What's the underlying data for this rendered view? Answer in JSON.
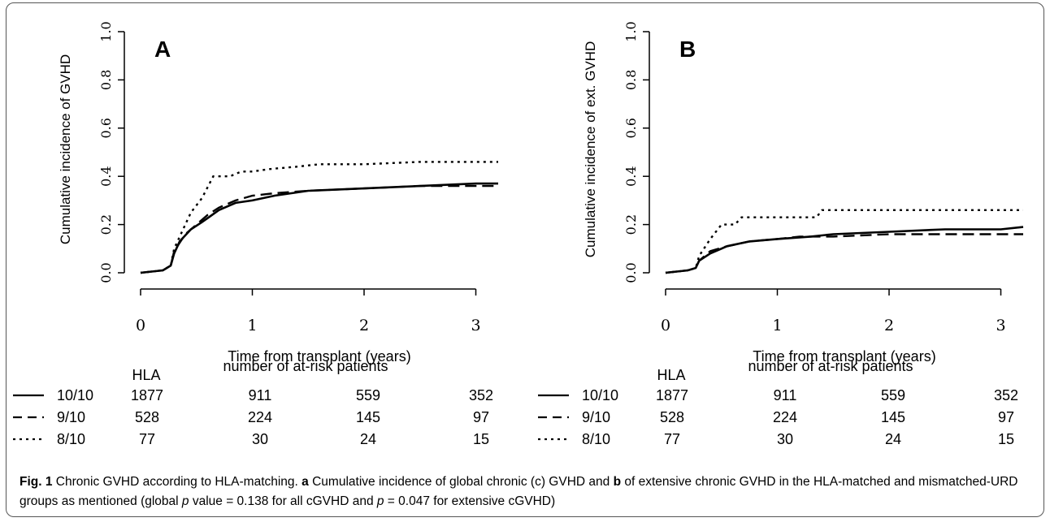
{
  "chart_data": [
    {
      "type": "line",
      "panel_label": "A",
      "ylabel": "Cumulative incidence of  GVHD",
      "xlabel": "Time from transplant (years)",
      "xlim": [
        0,
        3.2
      ],
      "ylim": [
        0,
        1.0
      ],
      "x_ticks": [
        "0",
        "1",
        "2",
        "3"
      ],
      "y_ticks": [
        "0.0",
        "0.2",
        "0.4",
        "0.6",
        "0.8",
        "1.0"
      ],
      "series": [
        {
          "name": "10/10",
          "style": "solid",
          "points": [
            [
              0,
              0
            ],
            [
              0.2,
              0.01
            ],
            [
              0.27,
              0.03
            ],
            [
              0.3,
              0.08
            ],
            [
              0.35,
              0.13
            ],
            [
              0.45,
              0.18
            ],
            [
              0.55,
              0.21
            ],
            [
              0.7,
              0.26
            ],
            [
              0.85,
              0.29
            ],
            [
              1.0,
              0.3
            ],
            [
              1.2,
              0.32
            ],
            [
              1.5,
              0.34
            ],
            [
              2.0,
              0.35
            ],
            [
              2.5,
              0.36
            ],
            [
              3.0,
              0.37
            ],
            [
              3.2,
              0.37
            ]
          ]
        },
        {
          "name": "9/10",
          "style": "dashed",
          "points": [
            [
              0,
              0
            ],
            [
              0.2,
              0.01
            ],
            [
              0.27,
              0.03
            ],
            [
              0.3,
              0.09
            ],
            [
              0.4,
              0.16
            ],
            [
              0.5,
              0.2
            ],
            [
              0.6,
              0.24
            ],
            [
              0.7,
              0.27
            ],
            [
              0.85,
              0.3
            ],
            [
              1.0,
              0.32
            ],
            [
              1.2,
              0.33
            ],
            [
              1.5,
              0.34
            ],
            [
              2.0,
              0.35
            ],
            [
              2.5,
              0.36
            ],
            [
              3.2,
              0.36
            ]
          ]
        },
        {
          "name": "8/10",
          "style": "dotted",
          "points": [
            [
              0,
              0
            ],
            [
              0.2,
              0.01
            ],
            [
              0.27,
              0.03
            ],
            [
              0.3,
              0.1
            ],
            [
              0.38,
              0.18
            ],
            [
              0.45,
              0.25
            ],
            [
              0.55,
              0.31
            ],
            [
              0.65,
              0.4
            ],
            [
              0.8,
              0.4
            ],
            [
              0.9,
              0.42
            ],
            [
              1.0,
              0.42
            ],
            [
              1.15,
              0.43
            ],
            [
              1.4,
              0.44
            ],
            [
              1.6,
              0.45
            ],
            [
              2.0,
              0.45
            ],
            [
              2.5,
              0.46
            ],
            [
              3.2,
              0.46
            ]
          ]
        }
      ]
    },
    {
      "type": "line",
      "panel_label": "B",
      "ylabel": "Cumulative incidence of ext. GVHD",
      "xlabel": "Time from transplant (years)",
      "xlim": [
        0,
        3.2
      ],
      "ylim": [
        0,
        1.0
      ],
      "x_ticks": [
        "0",
        "1",
        "2",
        "3"
      ],
      "y_ticks": [
        "0.0",
        "0.2",
        "0.4",
        "0.6",
        "0.8",
        "1.0"
      ],
      "series": [
        {
          "name": "10/10",
          "style": "solid",
          "points": [
            [
              0,
              0
            ],
            [
              0.2,
              0.01
            ],
            [
              0.27,
              0.02
            ],
            [
              0.3,
              0.05
            ],
            [
              0.4,
              0.08
            ],
            [
              0.55,
              0.11
            ],
            [
              0.75,
              0.13
            ],
            [
              1.0,
              0.14
            ],
            [
              1.3,
              0.15
            ],
            [
              1.5,
              0.16
            ],
            [
              2.0,
              0.17
            ],
            [
              2.5,
              0.18
            ],
            [
              3.0,
              0.18
            ],
            [
              3.2,
              0.19
            ]
          ]
        },
        {
          "name": "9/10",
          "style": "dashed",
          "points": [
            [
              0,
              0
            ],
            [
              0.2,
              0.01
            ],
            [
              0.27,
              0.02
            ],
            [
              0.3,
              0.05
            ],
            [
              0.4,
              0.09
            ],
            [
              0.55,
              0.11
            ],
            [
              0.75,
              0.13
            ],
            [
              1.0,
              0.14
            ],
            [
              1.2,
              0.15
            ],
            [
              1.5,
              0.15
            ],
            [
              2.0,
              0.16
            ],
            [
              3.2,
              0.16
            ]
          ]
        },
        {
          "name": "8/10",
          "style": "dotted",
          "points": [
            [
              0,
              0
            ],
            [
              0.2,
              0.01
            ],
            [
              0.27,
              0.02
            ],
            [
              0.3,
              0.07
            ],
            [
              0.4,
              0.14
            ],
            [
              0.5,
              0.2
            ],
            [
              0.62,
              0.2
            ],
            [
              0.68,
              0.23
            ],
            [
              1.0,
              0.23
            ],
            [
              1.35,
              0.23
            ],
            [
              1.4,
              0.26
            ],
            [
              2.0,
              0.26
            ],
            [
              3.2,
              0.26
            ]
          ]
        }
      ]
    }
  ],
  "risk_table": {
    "header_hla": "HLA",
    "header_title": "number of at-risk patients",
    "rows": [
      {
        "hla": "10/10",
        "style": "solid",
        "counts": [
          "1877",
          "911",
          "559",
          "352"
        ]
      },
      {
        "hla": "9/10",
        "style": "dashed",
        "counts": [
          "528",
          "224",
          "145",
          "97"
        ]
      },
      {
        "hla": "8/10",
        "style": "dotted",
        "counts": [
          "77",
          "30",
          "24",
          "15"
        ]
      }
    ]
  },
  "caption": {
    "fig_label": "Fig. 1",
    "title": " Chronic GVHD according to HLA-matching. ",
    "part_a": "a",
    "text1": " Cumulative incidence of global chronic (c) GVHD and ",
    "part_b": "b",
    "text2": " of extensive chronic GVHD in the HLA-matched and mismatched-URD groups as mentioned (global ",
    "p1": "p",
    "text3": " value = 0.138 for all cGVHD and ",
    "p2": "p",
    "text4": " = 0.047 for extensive cGVHD)"
  }
}
